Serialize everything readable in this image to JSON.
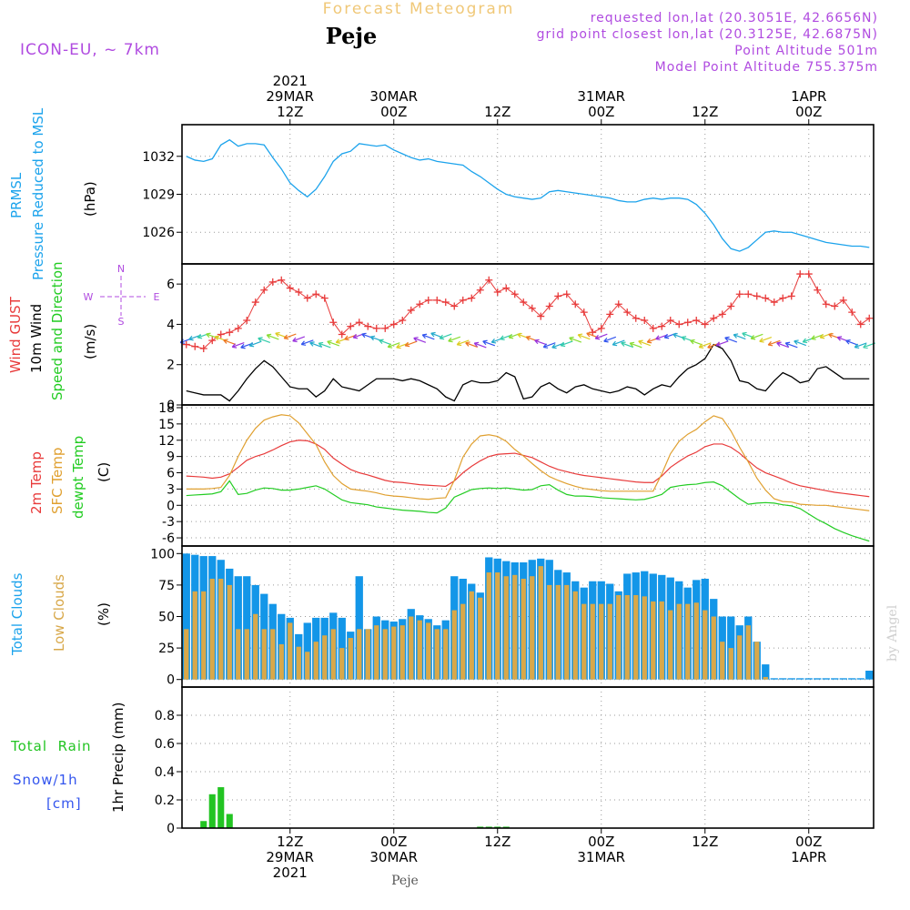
{
  "header": {
    "title": "Forecast Meteogram",
    "location": "Peje",
    "model": "ICON-EU, ~ 7km",
    "requested": "requested lon,lat (20.3051E, 42.6656N)",
    "gridpoint": "grid point closest lon,lat (20.3125E, 42.6875N)",
    "point_alt": "Point Altitude 501m",
    "model_alt": "Model Point Altitude 755.375m",
    "footer_location": "Peje",
    "credit": "by Angel"
  },
  "time_axis": {
    "ticks": [
      {
        "hour": 12,
        "top": [
          "2021",
          "29MAR",
          "12Z"
        ],
        "bottom": [
          "12Z",
          "29MAR",
          "2021"
        ]
      },
      {
        "hour": 24,
        "top": [
          "30MAR",
          "00Z"
        ],
        "bottom": [
          "00Z",
          "30MAR"
        ]
      },
      {
        "hour": 36,
        "top": [
          "12Z"
        ],
        "bottom": [
          "12Z"
        ]
      },
      {
        "hour": 48,
        "top": [
          "31MAR",
          "00Z"
        ],
        "bottom": [
          "00Z",
          "31MAR"
        ]
      },
      {
        "hour": 60,
        "top": [
          "12Z"
        ],
        "bottom": [
          "12Z"
        ]
      },
      {
        "hour": 72,
        "top": [
          "1APR",
          "00Z"
        ],
        "bottom": [
          "00Z",
          "1APR"
        ]
      }
    ]
  },
  "panels": {
    "pressure": {
      "label1": "PRMSL",
      "label2": "Pressure Reduced to MSL",
      "unit": "(hPa)"
    },
    "wind": {
      "label_gust": "Wind GUST",
      "label_wind": "10m Wind",
      "label_speed": "Speed and Direction",
      "unit": "(m/s)",
      "compass": {
        "n": "N",
        "s": "S",
        "w": "W",
        "e": "E"
      }
    },
    "temp": {
      "label_2m": "2m Temp",
      "label_sfc": "SFC Temp",
      "label_dew": "dewpt Temp",
      "unit": "(C)"
    },
    "clouds": {
      "label_total": "Total Clouds",
      "label_low": "Low Clouds",
      "unit": "(%)"
    },
    "precip": {
      "label_rain": "Total  Rain",
      "label_snow": "Snow/1h",
      "label_cm": "[cm]",
      "ylabel": "1hr Precip (mm)"
    }
  },
  "colors": {
    "pressure": "#1ca3ec",
    "gust": "#e83a3a",
    "wind": "#000000",
    "temp2m": "#e83a3a",
    "sfc": "#e0a030",
    "dew": "#22cc22",
    "total_clouds": "#1396e8",
    "low_clouds": "#d8a84a",
    "rain": "#22c422",
    "snow": "#3355ee",
    "info_purple": "#b04be0",
    "title_gold": "#f0c878"
  },
  "chart_data": [
    {
      "type": "line",
      "name": "prmsl",
      "ylim": [
        1023.5,
        1034.5
      ],
      "yticks": [
        1026,
        1029,
        1032
      ],
      "x": [
        0,
        1,
        2,
        3,
        4,
        5,
        6,
        7,
        8,
        9,
        10,
        11,
        12,
        13,
        14,
        15,
        16,
        17,
        18,
        19,
        20,
        21,
        22,
        23,
        24,
        25,
        26,
        27,
        28,
        29,
        30,
        31,
        32,
        33,
        34,
        35,
        36,
        37,
        38,
        39,
        40,
        41,
        42,
        43,
        44,
        45,
        46,
        47,
        48,
        49,
        50,
        51,
        52,
        53,
        54,
        55,
        56,
        57,
        58,
        59,
        60,
        61,
        62,
        63,
        64,
        65,
        66,
        67,
        68,
        69,
        70,
        71,
        72,
        73,
        74,
        75,
        76,
        77,
        78,
        79
      ],
      "y": [
        1032.0,
        1031.7,
        1031.6,
        1031.8,
        1032.9,
        1033.3,
        1032.8,
        1033.0,
        1033.0,
        1032.9,
        1031.9,
        1031.0,
        1029.9,
        1029.3,
        1028.8,
        1029.4,
        1030.4,
        1031.6,
        1032.2,
        1032.4,
        1033.0,
        1032.9,
        1032.8,
        1032.9,
        1032.5,
        1032.2,
        1031.9,
        1031.7,
        1031.8,
        1031.6,
        1031.5,
        1031.4,
        1031.3,
        1030.8,
        1030.4,
        1029.9,
        1029.4,
        1029.0,
        1028.8,
        1028.7,
        1028.6,
        1028.7,
        1029.2,
        1029.3,
        1029.2,
        1029.1,
        1029.0,
        1028.9,
        1028.8,
        1028.7,
        1028.5,
        1028.4,
        1028.4,
        1028.6,
        1028.7,
        1028.6,
        1028.7,
        1028.7,
        1028.6,
        1028.2,
        1027.5,
        1026.6,
        1025.5,
        1024.7,
        1024.5,
        1024.8,
        1025.4,
        1026.0,
        1026.1,
        1026.0,
        1026.0,
        1025.8,
        1025.6,
        1025.4,
        1025.2,
        1025.1,
        1025.0,
        1024.9,
        1024.9,
        1024.8
      ]
    },
    {
      "type": "line",
      "name": "wind",
      "ylim": [
        0,
        7
      ],
      "yticks": [
        0,
        2,
        4,
        6
      ],
      "x": [
        0,
        1,
        2,
        3,
        4,
        5,
        6,
        7,
        8,
        9,
        10,
        11,
        12,
        13,
        14,
        15,
        16,
        17,
        18,
        19,
        20,
        21,
        22,
        23,
        24,
        25,
        26,
        27,
        28,
        29,
        30,
        31,
        32,
        33,
        34,
        35,
        36,
        37,
        38,
        39,
        40,
        41,
        42,
        43,
        44,
        45,
        46,
        47,
        48,
        49,
        50,
        51,
        52,
        53,
        54,
        55,
        56,
        57,
        58,
        59,
        60,
        61,
        62,
        63,
        64,
        65,
        66,
        67,
        68,
        69,
        70,
        71,
        72,
        73,
        74,
        75,
        76,
        77,
        78,
        79
      ],
      "gust": [
        3.0,
        2.9,
        2.8,
        3.2,
        3.5,
        3.6,
        3.8,
        4.2,
        5.1,
        5.7,
        6.1,
        6.2,
        5.8,
        5.6,
        5.3,
        5.5,
        5.3,
        4.1,
        3.5,
        3.9,
        4.1,
        3.9,
        3.8,
        3.8,
        4.0,
        4.2,
        4.7,
        5.0,
        5.2,
        5.2,
        5.1,
        4.9,
        5.2,
        5.3,
        5.7,
        6.2,
        5.6,
        5.8,
        5.5,
        5.1,
        4.8,
        4.4,
        4.9,
        5.4,
        5.5,
        5.0,
        4.6,
        3.6,
        3.8,
        4.5,
        5.0,
        4.6,
        4.3,
        4.2,
        3.8,
        3.9,
        4.2,
        4.0,
        4.1,
        4.2,
        4.0,
        4.3,
        4.5,
        4.9,
        5.5,
        5.5,
        5.4,
        5.3,
        5.1,
        5.3,
        5.4,
        6.5,
        6.5,
        5.7,
        5.0,
        4.9,
        5.2,
        4.6,
        4.0,
        4.3
      ],
      "speed": [
        0.7,
        0.6,
        0.5,
        0.5,
        0.5,
        0.2,
        0.7,
        1.3,
        1.8,
        2.2,
        1.9,
        1.4,
        0.9,
        0.8,
        0.8,
        0.4,
        0.7,
        1.3,
        0.9,
        0.8,
        0.7,
        1.0,
        1.3,
        1.3,
        1.3,
        1.2,
        1.3,
        1.2,
        1.0,
        0.8,
        0.4,
        0.2,
        1.0,
        1.2,
        1.1,
        1.1,
        1.2,
        1.6,
        1.4,
        0.3,
        0.4,
        0.9,
        1.1,
        0.8,
        0.6,
        0.9,
        1.0,
        0.8,
        0.7,
        0.6,
        0.7,
        0.9,
        0.8,
        0.5,
        0.8,
        1.0,
        0.9,
        1.4,
        1.8,
        2.0,
        2.3,
        3.0,
        2.8,
        2.2,
        1.2,
        1.1,
        0.8,
        0.7,
        1.2,
        1.6,
        1.4,
        1.1,
        1.2,
        1.8,
        1.9,
        1.6,
        1.3,
        1.3,
        1.3,
        1.3
      ]
    },
    {
      "type": "line",
      "name": "temperature",
      "ylim": [
        -7.5,
        18.5
      ],
      "yticks": [
        -6,
        -3,
        0,
        3,
        6,
        9,
        12,
        15,
        18
      ],
      "x": [
        0,
        1,
        2,
        3,
        4,
        5,
        6,
        7,
        8,
        9,
        10,
        11,
        12,
        13,
        14,
        15,
        16,
        17,
        18,
        19,
        20,
        21,
        22,
        23,
        24,
        25,
        26,
        27,
        28,
        29,
        30,
        31,
        32,
        33,
        34,
        35,
        36,
        37,
        38,
        39,
        40,
        41,
        42,
        43,
        44,
        45,
        46,
        47,
        48,
        49,
        50,
        51,
        52,
        53,
        54,
        55,
        56,
        57,
        58,
        59,
        60,
        61,
        62,
        63,
        64,
        65,
        66,
        67,
        68,
        69,
        70,
        71,
        72,
        73,
        74,
        75,
        76,
        77,
        78,
        79
      ],
      "t2m": [
        5.4,
        5.3,
        5.2,
        5.0,
        5.2,
        5.8,
        7.0,
        8.3,
        9.0,
        9.5,
        10.2,
        11.0,
        11.7,
        12.0,
        11.9,
        11.3,
        10.3,
        8.7,
        7.6,
        6.6,
        6.0,
        5.6,
        5.1,
        4.6,
        4.3,
        4.2,
        4.0,
        3.8,
        3.7,
        3.6,
        3.5,
        4.5,
        6.0,
        7.2,
        8.2,
        9.0,
        9.4,
        9.5,
        9.6,
        9.2,
        8.8,
        8.0,
        7.2,
        6.6,
        6.2,
        5.8,
        5.5,
        5.3,
        5.1,
        4.9,
        4.7,
        4.5,
        4.3,
        4.2,
        4.2,
        5.4,
        7.0,
        8.1,
        9.1,
        9.8,
        10.8,
        11.3,
        11.3,
        10.7,
        9.6,
        8.2,
        6.9,
        6.0,
        5.4,
        4.8,
        4.1,
        3.6,
        3.3,
        3.0,
        2.7,
        2.4,
        2.2,
        2.0,
        1.8,
        1.6
      ],
      "sfc": [
        3.0,
        3.0,
        3.0,
        3.1,
        3.3,
        5.5,
        9.0,
        12.0,
        14.2,
        15.7,
        16.3,
        16.7,
        16.5,
        15.2,
        13.2,
        11.2,
        8.0,
        5.5,
        4.0,
        3.0,
        2.8,
        2.6,
        2.3,
        1.9,
        1.7,
        1.6,
        1.4,
        1.2,
        1.1,
        1.3,
        1.4,
        4.6,
        8.9,
        11.3,
        12.8,
        13.0,
        12.7,
        11.8,
        10.3,
        9.1,
        7.7,
        6.4,
        5.3,
        4.6,
        4.0,
        3.5,
        3.1,
        2.9,
        2.7,
        2.6,
        2.6,
        2.6,
        2.6,
        2.6,
        2.6,
        5.8,
        9.5,
        11.8,
        13.1,
        14.0,
        15.4,
        16.5,
        16.0,
        13.7,
        10.7,
        8.0,
        5.0,
        2.8,
        1.2,
        0.7,
        0.6,
        0.2,
        0.1,
        0.0,
        0.0,
        -0.2,
        -0.4,
        -0.6,
        -0.8,
        -1.0
      ],
      "dew": [
        1.8,
        1.9,
        2.0,
        2.1,
        2.5,
        4.5,
        2.0,
        2.2,
        2.8,
        3.2,
        3.1,
        2.8,
        2.8,
        3.0,
        3.3,
        3.6,
        3.0,
        2.0,
        1.0,
        0.5,
        0.3,
        0.1,
        -0.3,
        -0.5,
        -0.7,
        -0.9,
        -1.0,
        -1.1,
        -1.3,
        -1.4,
        -0.5,
        1.5,
        2.2,
        2.9,
        3.1,
        3.2,
        3.1,
        3.2,
        3.0,
        2.8,
        2.9,
        3.6,
        3.8,
        2.8,
        2.0,
        1.7,
        1.7,
        1.6,
        1.4,
        1.3,
        1.2,
        1.1,
        1.0,
        1.1,
        1.5,
        2.0,
        3.3,
        3.6,
        3.8,
        3.9,
        4.2,
        4.3,
        3.6,
        2.4,
        1.2,
        0.2,
        0.4,
        0.5,
        0.4,
        0.1,
        -0.1,
        -0.6,
        -1.6,
        -2.6,
        -3.4,
        -4.3,
        -5.0,
        -5.6,
        -6.1,
        -6.6
      ]
    },
    {
      "type": "bar",
      "name": "clouds",
      "ylim": [
        -6,
        106
      ],
      "yticks": [
        0,
        25,
        50,
        75,
        100
      ],
      "x": [
        0,
        1,
        2,
        3,
        4,
        5,
        6,
        7,
        8,
        9,
        10,
        11,
        12,
        13,
        14,
        15,
        16,
        17,
        18,
        19,
        20,
        21,
        22,
        23,
        24,
        25,
        26,
        27,
        28,
        29,
        30,
        31,
        32,
        33,
        34,
        35,
        36,
        37,
        38,
        39,
        40,
        41,
        42,
        43,
        44,
        45,
        46,
        47,
        48,
        49,
        50,
        51,
        52,
        53,
        54,
        55,
        56,
        57,
        58,
        59,
        60,
        61,
        62,
        63,
        64,
        65,
        66,
        67,
        68,
        69,
        70,
        71,
        72,
        73,
        74,
        75,
        76,
        77,
        78,
        79
      ],
      "total": [
        100,
        99,
        98,
        98,
        95,
        88,
        82,
        82,
        75,
        68,
        60,
        52,
        49,
        36,
        45,
        49,
        49,
        53,
        49,
        38,
        82,
        40,
        50,
        47,
        46,
        48,
        56,
        51,
        48,
        43,
        47,
        82,
        80,
        76,
        69,
        97,
        96,
        94,
        93,
        93,
        95,
        96,
        95,
        87,
        85,
        78,
        73,
        78,
        78,
        76,
        70,
        84,
        85,
        86,
        84,
        83,
        81,
        78,
        73,
        79,
        80,
        64,
        50,
        50,
        43,
        50,
        30,
        12,
        1,
        1,
        1,
        1,
        1,
        1,
        1,
        1,
        1,
        1,
        1,
        7
      ],
      "low": [
        40,
        70,
        70,
        80,
        80,
        75,
        40,
        40,
        52,
        40,
        40,
        28,
        45,
        26,
        22,
        30,
        35,
        40,
        25,
        33,
        40,
        40,
        43,
        40,
        42,
        43,
        50,
        47,
        45,
        40,
        40,
        55,
        60,
        70,
        65,
        85,
        85,
        82,
        83,
        80,
        82,
        90,
        75,
        75,
        75,
        70,
        60,
        60,
        60,
        60,
        67,
        67,
        67,
        66,
        62,
        62,
        55,
        60,
        60,
        61,
        55,
        50,
        30,
        25,
        35,
        43,
        30,
        2,
        0,
        0,
        0,
        0,
        0,
        0,
        0,
        0,
        0,
        0,
        0,
        0
      ]
    },
    {
      "type": "bar",
      "name": "precip_1h",
      "ylim": [
        0,
        1.0
      ],
      "yticks": [
        0,
        0.2,
        0.4,
        0.6,
        0.8
      ],
      "x": [
        0,
        1,
        2,
        3,
        4,
        5,
        6,
        7,
        8,
        9,
        10,
        11,
        12,
        13,
        14,
        15,
        16,
        17,
        18,
        19,
        20,
        21,
        22,
        23,
        24,
        25,
        26,
        27,
        28,
        29,
        30,
        31,
        32,
        33,
        34,
        35,
        36,
        37,
        38,
        39,
        40,
        41,
        42,
        43,
        44,
        45,
        46,
        47,
        48,
        49,
        50,
        51,
        52,
        53,
        54,
        55,
        56,
        57,
        58,
        59,
        60,
        61,
        62,
        63,
        64,
        65,
        66,
        67,
        68,
        69,
        70,
        71,
        72,
        73,
        74,
        75,
        76,
        77,
        78,
        79
      ],
      "rain": [
        0,
        0,
        0.05,
        0.24,
        0.29,
        0.1,
        0,
        0,
        0,
        0,
        0,
        0,
        0,
        0,
        0,
        0,
        0,
        0,
        0,
        0,
        0,
        0,
        0,
        0,
        0,
        0,
        0,
        0,
        0,
        0,
        0,
        0,
        0,
        0,
        0.01,
        0.01,
        0.01,
        0.01,
        0,
        0,
        0,
        0,
        0,
        0,
        0,
        0,
        0,
        0,
        0,
        0,
        0,
        0,
        0,
        0,
        0,
        0,
        0,
        0,
        0,
        0,
        0,
        0,
        0,
        0,
        0,
        0,
        0,
        0,
        0,
        0,
        0,
        0,
        0,
        0,
        0,
        0,
        0,
        0,
        0,
        0
      ],
      "snow": [
        0,
        0,
        0,
        0,
        0,
        0,
        0,
        0,
        0,
        0,
        0,
        0,
        0,
        0,
        0,
        0,
        0,
        0,
        0,
        0,
        0,
        0,
        0,
        0,
        0,
        0,
        0,
        0,
        0,
        0,
        0,
        0,
        0,
        0,
        0,
        0,
        0,
        0,
        0,
        0,
        0,
        0,
        0,
        0,
        0,
        0,
        0,
        0,
        0,
        0,
        0,
        0,
        0,
        0,
        0,
        0,
        0,
        0,
        0,
        0,
        0,
        0,
        0,
        0,
        0,
        0,
        0,
        0,
        0,
        0,
        0,
        0,
        0,
        0,
        0,
        0,
        0,
        0,
        0,
        0
      ]
    }
  ]
}
